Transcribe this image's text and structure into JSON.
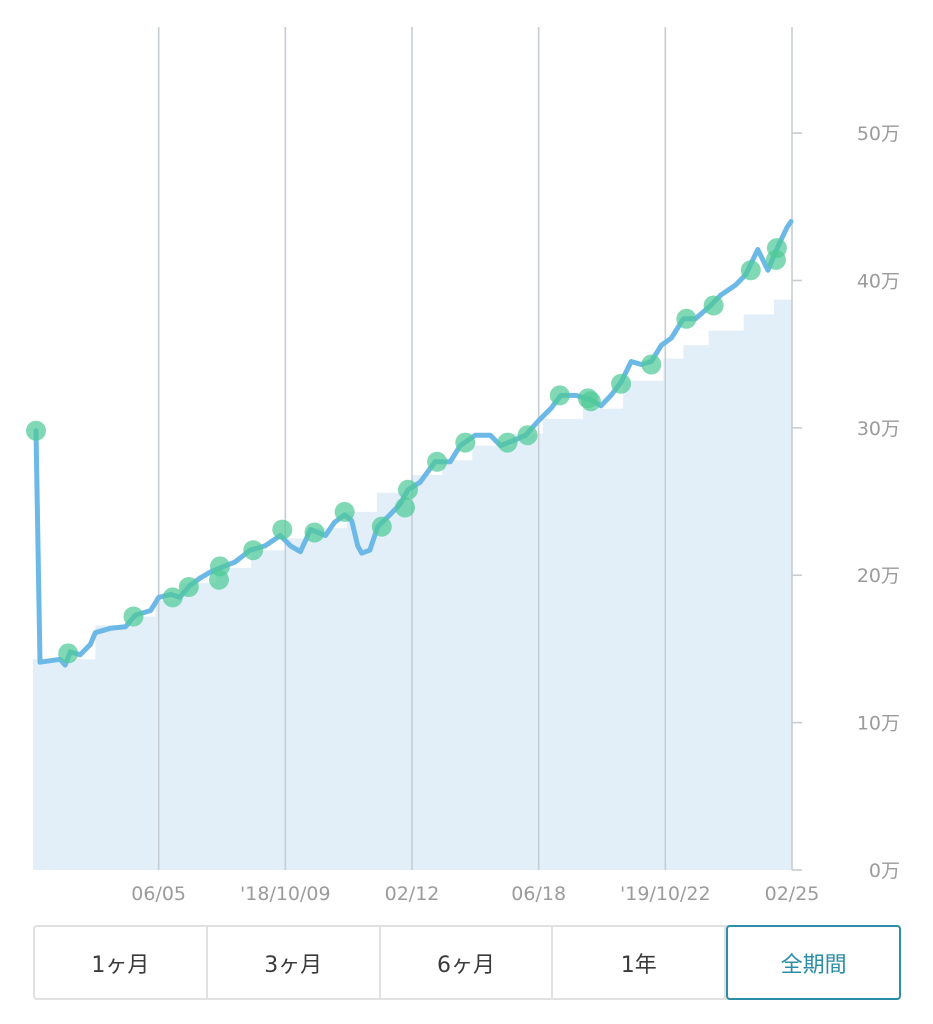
{
  "chart_data": {
    "type": "line",
    "title": "",
    "xlabel": "",
    "ylabel": "",
    "x_range": [
      "2018-01-31",
      "2020-02-25"
    ],
    "ylim": [
      0,
      57.2
    ],
    "grid": true,
    "x_ticks": [
      {
        "date": "2018-06-05",
        "label": "06/05"
      },
      {
        "date": "2018-10-09",
        "label": "'18/10/09"
      },
      {
        "date": "2019-02-12",
        "label": "02/12"
      },
      {
        "date": "2019-06-18",
        "label": "06/18"
      },
      {
        "date": "2019-10-22",
        "label": "'19/10/22"
      },
      {
        "date": "2020-02-25",
        "label": "02/25"
      }
    ],
    "y_ticks": [
      {
        "value": 0,
        "label": "0万"
      },
      {
        "value": 10,
        "label": "10万"
      },
      {
        "value": 20,
        "label": "20万"
      },
      {
        "value": 30,
        "label": "30万"
      },
      {
        "value": 40,
        "label": "40万"
      },
      {
        "value": 50,
        "label": "50万"
      }
    ],
    "series": [
      {
        "type": "area",
        "step": true,
        "points": [
          [
            "2018-01-31",
            14.3
          ],
          [
            "2018-04-03",
            16.6
          ],
          [
            "2018-05-13",
            17.2
          ],
          [
            "2018-06-02",
            18.3
          ],
          [
            "2018-06-27",
            19.5
          ],
          [
            "2018-08-01",
            20.5
          ],
          [
            "2018-09-05",
            21.7
          ],
          [
            "2018-10-10",
            22.5
          ],
          [
            "2018-11-04",
            23.2
          ],
          [
            "2018-12-09",
            24.3
          ],
          [
            "2019-01-08",
            25.6
          ],
          [
            "2019-02-12",
            26.8
          ],
          [
            "2019-03-14",
            27.8
          ],
          [
            "2019-04-13",
            28.8
          ],
          [
            "2019-05-23",
            29.6
          ],
          [
            "2019-06-22",
            30.6
          ],
          [
            "2019-08-01",
            31.3
          ],
          [
            "2019-09-10",
            33.2
          ],
          [
            "2019-10-20",
            34.7
          ],
          [
            "2019-11-09",
            35.6
          ],
          [
            "2019-12-04",
            36.6
          ],
          [
            "2020-01-08",
            37.7
          ],
          [
            "2020-02-07",
            38.7
          ]
        ]
      },
      {
        "type": "line",
        "points": [
          [
            "2018-02-03",
            29.8
          ],
          [
            "2018-02-07",
            14.1
          ],
          [
            "2018-02-27",
            14.3
          ],
          [
            "2018-03-04",
            13.9
          ],
          [
            "2018-03-09",
            14.8
          ],
          [
            "2018-03-19",
            14.6
          ],
          [
            "2018-03-29",
            15.3
          ],
          [
            "2018-04-03",
            16.1
          ],
          [
            "2018-04-18",
            16.4
          ],
          [
            "2018-05-03",
            16.5
          ],
          [
            "2018-05-13",
            17.3
          ],
          [
            "2018-05-28",
            17.6
          ],
          [
            "2018-06-05",
            18.5
          ],
          [
            "2018-06-17",
            18.7
          ],
          [
            "2018-06-26",
            18.5
          ],
          [
            "2018-07-06",
            19.3
          ],
          [
            "2018-07-16",
            19.8
          ],
          [
            "2018-07-26",
            20.2
          ],
          [
            "2018-08-05",
            20.5
          ],
          [
            "2018-08-20",
            20.9
          ],
          [
            "2018-09-04",
            21.7
          ],
          [
            "2018-09-19",
            22.0
          ],
          [
            "2018-10-04",
            22.7
          ],
          [
            "2018-10-14",
            22.0
          ],
          [
            "2018-10-24",
            21.6
          ],
          [
            "2018-11-03",
            23.1
          ],
          [
            "2018-11-18",
            22.7
          ],
          [
            "2018-11-27",
            23.6
          ],
          [
            "2018-12-07",
            24.1
          ],
          [
            "2018-12-14",
            23.7
          ],
          [
            "2018-12-20",
            22.0
          ],
          [
            "2018-12-24",
            21.5
          ],
          [
            "2019-01-01",
            21.7
          ],
          [
            "2019-01-09",
            23.3
          ],
          [
            "2019-01-21",
            24.1
          ],
          [
            "2019-01-31",
            24.8
          ],
          [
            "2019-02-08",
            25.8
          ],
          [
            "2019-02-20",
            26.3
          ],
          [
            "2019-03-07",
            27.7
          ],
          [
            "2019-03-22",
            27.7
          ],
          [
            "2019-04-01",
            28.8
          ],
          [
            "2019-04-16",
            29.5
          ],
          [
            "2019-05-01",
            29.5
          ],
          [
            "2019-05-11",
            28.8
          ],
          [
            "2019-05-26",
            29.2
          ],
          [
            "2019-06-05",
            29.5
          ],
          [
            "2019-06-18",
            30.5
          ],
          [
            "2019-06-30",
            31.3
          ],
          [
            "2019-07-10",
            32.2
          ],
          [
            "2019-07-25",
            32.2
          ],
          [
            "2019-08-09",
            31.9
          ],
          [
            "2019-08-19",
            31.5
          ],
          [
            "2019-08-29",
            32.2
          ],
          [
            "2019-09-08",
            33.1
          ],
          [
            "2019-09-18",
            34.5
          ],
          [
            "2019-09-28",
            34.3
          ],
          [
            "2019-10-08",
            34.5
          ],
          [
            "2019-10-18",
            35.6
          ],
          [
            "2019-10-28",
            36.1
          ],
          [
            "2019-11-09",
            37.4
          ],
          [
            "2019-11-21",
            37.4
          ],
          [
            "2019-12-06",
            38.3
          ],
          [
            "2019-12-16",
            39.0
          ],
          [
            "2019-12-31",
            39.7
          ],
          [
            "2020-01-10",
            40.4
          ],
          [
            "2020-01-22",
            42.1
          ],
          [
            "2020-02-01",
            40.7
          ],
          [
            "2020-02-11",
            42.3
          ],
          [
            "2020-02-20",
            43.6
          ],
          [
            "2020-02-24",
            44.0
          ]
        ]
      },
      {
        "type": "scatter",
        "points": [
          [
            "2018-02-03",
            29.8
          ],
          [
            "2018-03-07",
            14.7
          ],
          [
            "2018-05-11",
            17.2
          ],
          [
            "2018-06-19",
            18.5
          ],
          [
            "2018-07-05",
            19.2
          ],
          [
            "2018-08-05",
            20.6
          ],
          [
            "2018-08-04",
            19.7
          ],
          [
            "2018-09-07",
            21.7
          ],
          [
            "2018-10-06",
            23.1
          ],
          [
            "2018-11-07",
            22.9
          ],
          [
            "2018-12-07",
            24.3
          ],
          [
            "2019-01-13",
            23.3
          ],
          [
            "2019-02-05",
            24.6
          ],
          [
            "2019-02-08",
            25.8
          ],
          [
            "2019-03-09",
            27.7
          ],
          [
            "2019-04-06",
            29.0
          ],
          [
            "2019-05-18",
            29.0
          ],
          [
            "2019-06-07",
            29.5
          ],
          [
            "2019-07-09",
            32.2
          ],
          [
            "2019-08-06",
            32.0
          ],
          [
            "2019-08-09",
            31.8
          ],
          [
            "2019-09-08",
            33.0
          ],
          [
            "2019-10-08",
            34.3
          ],
          [
            "2019-11-12",
            37.4
          ],
          [
            "2019-12-09",
            38.3
          ],
          [
            "2020-01-15",
            40.7
          ],
          [
            "2020-02-09",
            41.4
          ],
          [
            "2020-02-10",
            42.2
          ]
        ]
      }
    ]
  },
  "colors": {
    "line": "#6cb8e6",
    "area": "#e2eff9",
    "marker": "#4fcb97",
    "grid": "#c6cdd3",
    "tick_text": "#9b9b9b",
    "accent": "#2b8ea6"
  },
  "range_selector": {
    "buttons": [
      {
        "label": "1ヶ月"
      },
      {
        "label": "3ヶ月"
      },
      {
        "label": "6ヶ月"
      },
      {
        "label": "1年"
      },
      {
        "label": "全期間"
      }
    ],
    "selected_index": 4
  }
}
